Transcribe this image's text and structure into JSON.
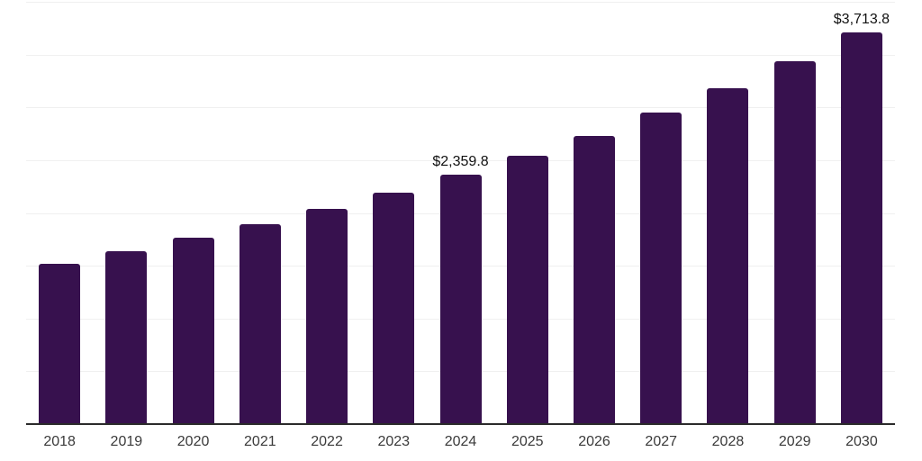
{
  "chart_data": {
    "type": "bar",
    "title": "",
    "xlabel": "",
    "ylabel": "",
    "categories": [
      "2018",
      "2019",
      "2020",
      "2021",
      "2022",
      "2023",
      "2024",
      "2025",
      "2026",
      "2027",
      "2028",
      "2029",
      "2030"
    ],
    "values": [
      1520,
      1635,
      1765,
      1890,
      2035,
      2190,
      2359.8,
      2540,
      2730,
      2950,
      3180,
      3435,
      3713.8
    ],
    "data_labels": [
      "",
      "",
      "",
      "",
      "",
      "",
      "$2,359.8",
      "",
      "",
      "",
      "",
      "",
      "$3,713.8"
    ],
    "ylim": [
      0,
      4000
    ],
    "grid_step": 500,
    "grid": "horizontal gridlines only, no y-axis tick labels",
    "legend": "none",
    "colors": {
      "bar": "#37114E",
      "axis_line": "#2b2b2b",
      "gridline": "#f0f0f0",
      "tick_label": "#3a3a3a",
      "data_label": "#111111",
      "background": "#ffffff"
    }
  }
}
